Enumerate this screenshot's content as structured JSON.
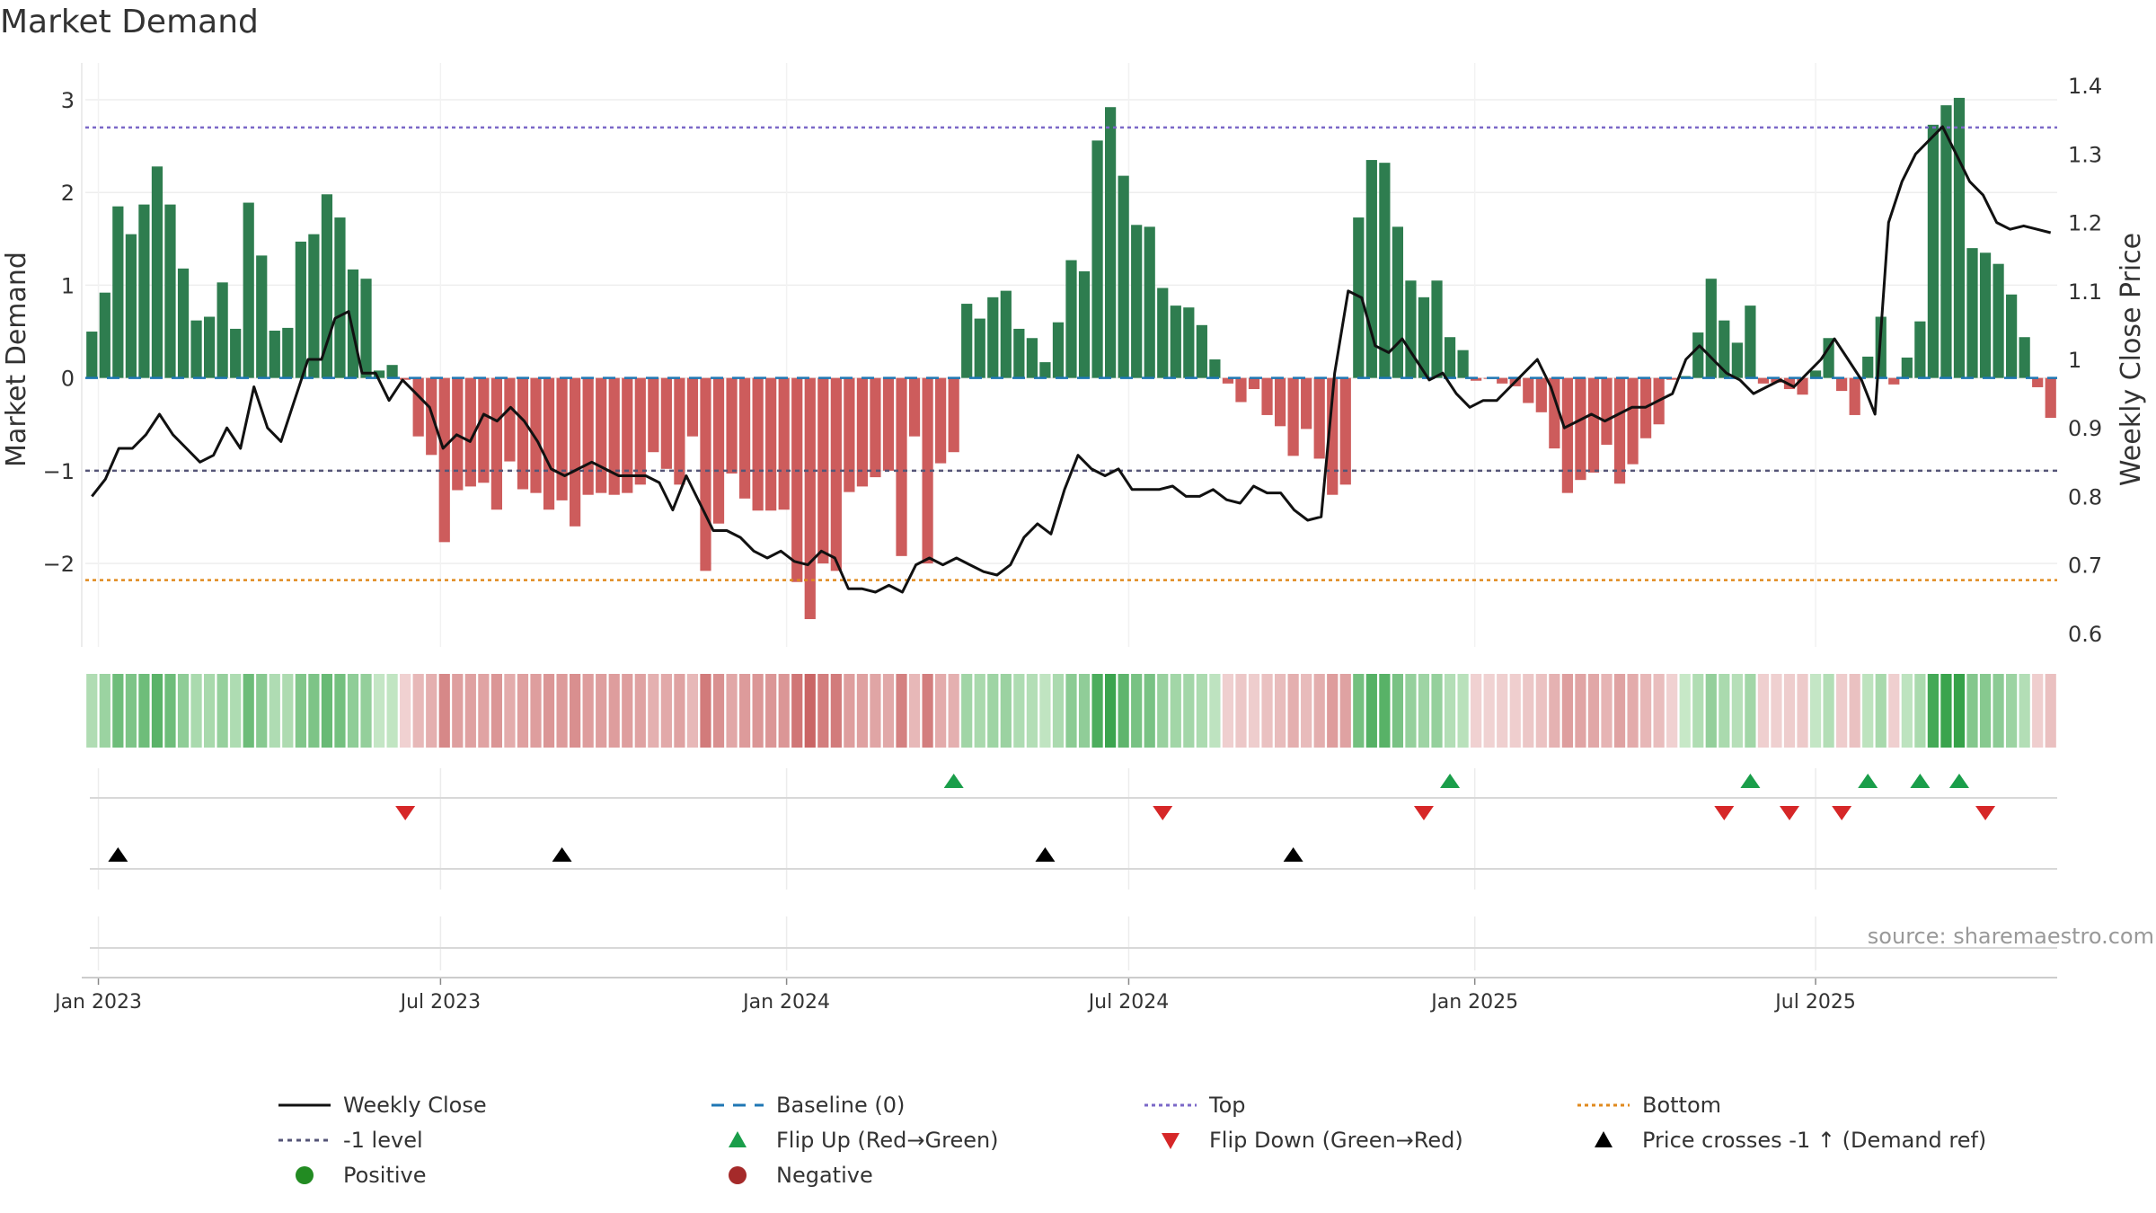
{
  "title": "Market Demand",
  "source": "source: sharemaestro.com",
  "colors": {
    "positive_bar": "#2e7d4f",
    "negative_bar": "#cd5c5c",
    "price": "#111111",
    "baseline": "#1f77b4",
    "top": "#7b68c8",
    "minus1": "#555577",
    "bottom": "#e08a1e",
    "flip_up": "#1a9e4a",
    "flip_down": "#d62728",
    "cross": "#000000",
    "positive_dot": "#228b22",
    "negative_dot": "#a52a2a"
  },
  "chart_data": {
    "type": "bar",
    "title": "Market Demand",
    "ylabel": "Market Demand",
    "y2label": "Weekly Close Price",
    "ylim": [
      -2.9,
      3.3
    ],
    "y2lim": [
      0.58,
      1.42
    ],
    "yticks": [
      "3",
      "2",
      "1",
      "0",
      "−1",
      "−2"
    ],
    "y2ticks": [
      "1.4",
      "1.3",
      "1.2",
      "1.1",
      "1",
      "0.9",
      "0.8",
      "0.7",
      "0.6"
    ],
    "x_ticks": [
      "Jan 2023",
      "Jul 2023",
      "Jan 2024",
      "Jul 2024",
      "Jan 2025",
      "Jul 2025"
    ],
    "reference_lines": {
      "top": 2.7,
      "minus1": -1.0,
      "bottom": -2.18,
      "baseline": 0
    },
    "demand": [
      0.5,
      0.92,
      1.85,
      1.55,
      1.87,
      2.28,
      1.87,
      1.18,
      0.62,
      0.66,
      1.03,
      0.53,
      1.89,
      1.32,
      0.51,
      0.54,
      1.47,
      1.55,
      1.98,
      1.73,
      1.17,
      1.07,
      0.08,
      0.14,
      -0.02,
      -0.63,
      -0.83,
      -1.77,
      -1.21,
      -1.17,
      -1.13,
      -1.42,
      -0.9,
      -1.2,
      -1.24,
      -1.42,
      -1.32,
      -1.6,
      -1.26,
      -1.24,
      -1.26,
      -1.24,
      -1.15,
      -0.8,
      -0.98,
      -1.15,
      -0.63,
      -2.08,
      -1.57,
      -1.03,
      -1.3,
      -1.43,
      -1.43,
      -1.42,
      -2.2,
      -2.6,
      -2.0,
      -2.08,
      -1.23,
      -1.17,
      -1.07,
      -1.0,
      -1.92,
      -0.63,
      -2.0,
      -0.92,
      -0.8,
      0.8,
      0.64,
      0.87,
      0.94,
      0.53,
      0.43,
      0.17,
      0.6,
      1.27,
      1.15,
      2.56,
      2.92,
      2.18,
      1.65,
      1.63,
      0.97,
      0.78,
      0.76,
      0.57,
      0.2,
      -0.06,
      -0.26,
      -0.12,
      -0.4,
      -0.52,
      -0.84,
      -0.55,
      -0.87,
      -1.26,
      -1.15,
      1.73,
      2.35,
      2.32,
      1.63,
      1.05,
      0.87,
      1.05,
      0.44,
      0.3,
      -0.03,
      -0.01,
      -0.06,
      -0.09,
      -0.27,
      -0.37,
      -0.76,
      -1.24,
      -1.1,
      -1.02,
      -0.72,
      -1.14,
      -0.93,
      -0.65,
      -0.5,
      -0.02,
      0.02,
      0.49,
      1.07,
      0.62,
      0.38,
      0.78,
      -0.06,
      -0.05,
      -0.12,
      -0.18,
      0.08,
      0.43,
      -0.14,
      -0.4,
      0.23,
      0.66,
      -0.07,
      0.22,
      0.61,
      2.73,
      2.94,
      3.02,
      1.4,
      1.35,
      1.23,
      0.9,
      0.44,
      -0.1,
      -0.43
    ],
    "price": [
      0.8,
      0.825,
      0.87,
      0.87,
      0.89,
      0.92,
      0.89,
      0.87,
      0.85,
      0.86,
      0.9,
      0.87,
      0.96,
      0.9,
      0.88,
      0.94,
      1.0,
      1.0,
      1.06,
      1.07,
      0.98,
      0.98,
      0.94,
      0.97,
      0.95,
      0.93,
      0.87,
      0.89,
      0.88,
      0.92,
      0.91,
      0.93,
      0.91,
      0.88,
      0.84,
      0.83,
      0.84,
      0.85,
      0.84,
      0.83,
      0.83,
      0.83,
      0.82,
      0.78,
      0.83,
      0.79,
      0.75,
      0.75,
      0.74,
      0.72,
      0.71,
      0.72,
      0.705,
      0.7,
      0.72,
      0.71,
      0.665,
      0.665,
      0.66,
      0.67,
      0.66,
      0.7,
      0.71,
      0.7,
      0.71,
      0.7,
      0.69,
      0.685,
      0.7,
      0.74,
      0.76,
      0.745,
      0.81,
      0.86,
      0.84,
      0.83,
      0.84,
      0.81,
      0.81,
      0.81,
      0.815,
      0.8,
      0.8,
      0.81,
      0.795,
      0.79,
      0.815,
      0.805,
      0.805,
      0.78,
      0.765,
      0.77,
      0.98,
      1.1,
      1.09,
      1.02,
      1.01,
      1.03,
      1.0,
      0.97,
      0.98,
      0.95,
      0.93,
      0.94,
      0.94,
      0.96,
      0.98,
      1.0,
      0.96,
      0.9,
      0.91,
      0.92,
      0.91,
      0.92,
      0.93,
      0.93,
      0.94,
      0.95,
      1.0,
      1.02,
      1.0,
      0.98,
      0.97,
      0.95,
      0.96,
      0.97,
      0.96,
      0.98,
      1.0,
      1.03,
      1.0,
      0.97,
      0.92,
      1.2,
      1.26,
      1.3,
      1.32,
      1.34,
      1.3,
      1.26,
      1.24,
      1.2,
      1.19,
      1.195,
      1.19,
      1.185
    ],
    "flip_up_weeks": [
      66,
      104,
      127,
      136,
      140,
      143
    ],
    "flip_down_weeks": [
      24,
      82,
      102,
      125,
      130,
      134,
      145
    ],
    "cross_weeks": [
      2,
      36,
      73,
      92
    ],
    "legend": [
      [
        "Weekly Close",
        "Baseline (0)",
        "Top",
        "Bottom"
      ],
      [
        "-1 level",
        "Flip Up (Red→Green)",
        "Flip Down (Green→Red)",
        "Price crosses -1 ↑ (Demand ref)"
      ],
      [
        "Positive",
        "Negative"
      ]
    ]
  }
}
